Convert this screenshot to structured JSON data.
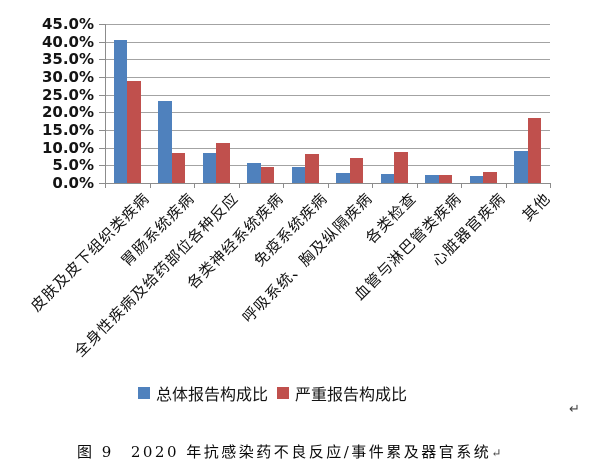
{
  "figure": {
    "caption": {
      "prefix": "图 9",
      "text": "2020 年抗感染药不良反应/事件累及器官系统",
      "return_mark": "↵"
    },
    "paragraph_return_mark": "↵"
  },
  "chart_data": {
    "type": "bar",
    "title": "",
    "xlabel": "",
    "ylabel": "",
    "categories": [
      "皮肤及皮下组织类疾病",
      "胃肠系统疾病",
      "全身性疾病及给药部位各种反应",
      "各类神经系统疾病",
      "免疫系统疾病",
      "呼吸系统、胸及纵隔疾病",
      "各类检查",
      "血管与淋巴管类疾病",
      "心脏器官疾病",
      "其他"
    ],
    "series": [
      {
        "name": "总体报告构成比",
        "color": "#4f81bd",
        "values": [
          40.4,
          23.2,
          8.6,
          5.7,
          4.6,
          2.9,
          2.6,
          2.2,
          1.9,
          9.2
        ]
      },
      {
        "name": "严重报告构成比",
        "color": "#c0504d",
        "values": [
          28.9,
          8.6,
          11.2,
          4.5,
          8.1,
          7.2,
          8.7,
          2.2,
          3.0,
          18.5
        ]
      }
    ],
    "ylim": [
      0,
      45
    ],
    "ytick_step": 5,
    "ytick_labels": [
      "45.0%",
      "40.0%",
      "35.0%",
      "30.0%",
      "25.0%",
      "20.0%",
      "15.0%",
      "10.0%",
      "5.0%",
      "0.0%"
    ],
    "grid": true,
    "legend_position": "bottom"
  },
  "colors": {
    "gridline": "#a3a3a3",
    "axis": "#8c8c8c",
    "blue_series": "#4f81bd",
    "red_series": "#c0504d"
  }
}
